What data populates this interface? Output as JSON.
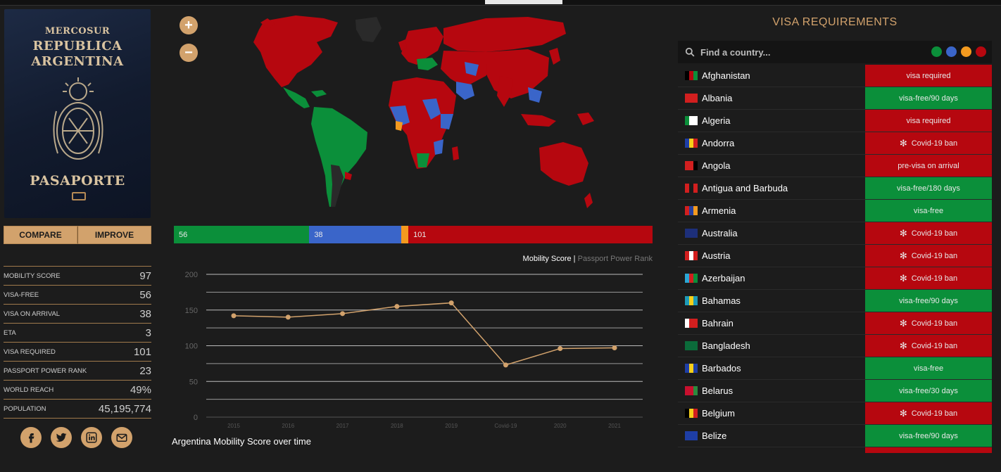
{
  "passport": {
    "line1": "MERCOSUR",
    "line2": "REPUBLICA",
    "line3": "ARGENTINA",
    "line4": "PASAPORTE"
  },
  "actions": {
    "compare": "COMPARE",
    "improve": "IMPROVE"
  },
  "stats": [
    {
      "label": "MOBILITY SCORE",
      "value": "97"
    },
    {
      "label": "VISA-FREE",
      "value": "56"
    },
    {
      "label": "VISA ON ARRIVAL",
      "value": "38"
    },
    {
      "label": "ETA",
      "value": "3"
    },
    {
      "label": "VISA REQUIRED",
      "value": "101"
    },
    {
      "label": "PASSPORT POWER RANK",
      "value": "23"
    },
    {
      "label": "WORLD REACH",
      "value": "49%"
    },
    {
      "label": "POPULATION",
      "value": "45,195,774"
    }
  ],
  "social": [
    "facebook-icon",
    "twitter-icon",
    "linkedin-icon",
    "email-icon"
  ],
  "zoom": {
    "in": "+",
    "out": "−"
  },
  "summary_bar": [
    {
      "label": "56",
      "value": 56,
      "color": "#0b8f3a"
    },
    {
      "label": "38",
      "value": 38,
      "color": "#3a65c9"
    },
    {
      "label": "",
      "value": 3,
      "color": "#f39a1f"
    },
    {
      "label": "101",
      "value": 101,
      "color": "#b6070f"
    }
  ],
  "chart_legend": {
    "active": "Mobility Score",
    "separator": " | ",
    "inactive": "Passport Power Rank"
  },
  "chart_title": "Argentina Mobility Score over time",
  "chart_data": {
    "type": "line",
    "x": [
      "2015",
      "2016",
      "2017",
      "2018",
      "2019",
      "Covid-19",
      "2020",
      "2021"
    ],
    "y": [
      142,
      140,
      145,
      155,
      160,
      73,
      96,
      97
    ],
    "ylim": [
      0,
      200
    ],
    "yticks": [
      0,
      50,
      100,
      150,
      200
    ],
    "grid": true,
    "line_color": "#d2a26c"
  },
  "visa": {
    "title": "VISA REQUIREMENTS",
    "search_placeholder": "Find a country...",
    "filter_colors": [
      "#0b8f3a",
      "#3a65c9",
      "#f39a1f",
      "#b6070f"
    ],
    "rows": [
      {
        "country": "Afghanistan",
        "status": "visa required",
        "kind": "red",
        "covid": false
      },
      {
        "country": "Albania",
        "status": "visa-free/90 days",
        "kind": "green",
        "covid": false
      },
      {
        "country": "Algeria",
        "status": "visa required",
        "kind": "red",
        "covid": false
      },
      {
        "country": "Andorra",
        "status": "Covid-19 ban",
        "kind": "red",
        "covid": true
      },
      {
        "country": "Angola",
        "status": "pre-visa on arrival",
        "kind": "red",
        "covid": false
      },
      {
        "country": "Antigua and Barbuda",
        "status": "visa-free/180 days",
        "kind": "green",
        "covid": false
      },
      {
        "country": "Armenia",
        "status": "visa-free",
        "kind": "green",
        "covid": false
      },
      {
        "country": "Australia",
        "status": "Covid-19 ban",
        "kind": "red",
        "covid": true
      },
      {
        "country": "Austria",
        "status": "Covid-19 ban",
        "kind": "red",
        "covid": true
      },
      {
        "country": "Azerbaijan",
        "status": "Covid-19 ban",
        "kind": "red",
        "covid": true
      },
      {
        "country": "Bahamas",
        "status": "visa-free/90 days",
        "kind": "green",
        "covid": false
      },
      {
        "country": "Bahrain",
        "status": "Covid-19 ban",
        "kind": "red",
        "covid": true
      },
      {
        "country": "Bangladesh",
        "status": "Covid-19 ban",
        "kind": "red",
        "covid": true
      },
      {
        "country": "Barbados",
        "status": "visa-free",
        "kind": "green",
        "covid": false
      },
      {
        "country": "Belarus",
        "status": "visa-free/30 days",
        "kind": "green",
        "covid": false
      },
      {
        "country": "Belgium",
        "status": "Covid-19 ban",
        "kind": "red",
        "covid": true
      },
      {
        "country": "Belize",
        "status": "visa-free/90 days",
        "kind": "green",
        "covid": false
      },
      {
        "country": "",
        "status": "",
        "kind": "red",
        "covid": false
      }
    ]
  }
}
